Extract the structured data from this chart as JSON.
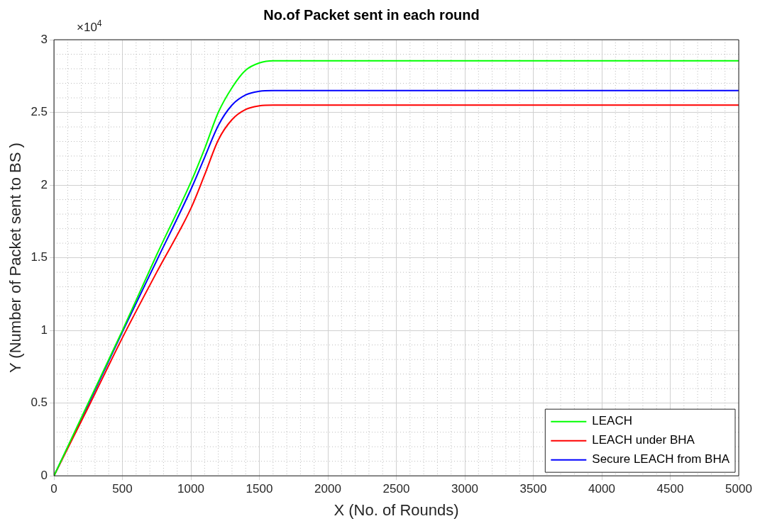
{
  "chart_data": {
    "type": "line",
    "title": "No.of Packet sent in each round",
    "xlabel": "X (No. of Rounds)",
    "ylabel": "Y (Number of Packet sent to BS )",
    "annotations": [
      "×10$^{4}$"
    ],
    "x": [
      0,
      250,
      500,
      750,
      1000,
      1100,
      1200,
      1300,
      1400,
      1500,
      1600,
      5000
    ],
    "series": [
      {
        "name": "LEACH",
        "color": "#00ff00",
        "values": [
          0,
          0.5,
          1.0,
          1.52,
          2.02,
          2.25,
          2.5,
          2.67,
          2.79,
          2.84,
          2.855,
          2.855
        ]
      },
      {
        "name": "LEACH under BHA",
        "color": "#ff0000",
        "values": [
          0,
          0.47,
          0.95,
          1.4,
          1.84,
          2.07,
          2.31,
          2.45,
          2.52,
          2.545,
          2.55,
          2.55
        ]
      },
      {
        "name": "Secure LEACH from BHA",
        "color": "#0000ff",
        "values": [
          0,
          0.49,
          0.99,
          1.48,
          1.97,
          2.19,
          2.41,
          2.55,
          2.62,
          2.645,
          2.65,
          2.65
        ]
      }
    ],
    "xlim": [
      0,
      5000
    ],
    "xticks": [
      0,
      500,
      1000,
      1500,
      2000,
      2500,
      3000,
      3500,
      4000,
      4500,
      5000
    ],
    "ylim": [
      0,
      3
    ],
    "yticks": [
      0,
      0.5,
      1,
      1.5,
      2,
      2.5,
      3
    ],
    "grid": true,
    "legend": "bottom right",
    "marker": "none",
    "line_style": "solid"
  }
}
